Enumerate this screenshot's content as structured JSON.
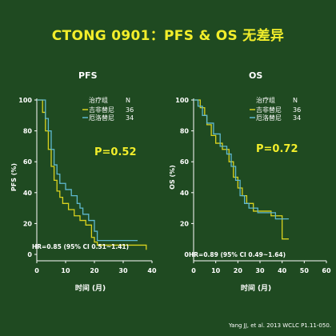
{
  "page": {
    "title": "CTONG 0901：PFS & OS 无差异",
    "citation": "Yang JJ, et al. 2013 WCLC P1.11-050.",
    "background": "#1f4a21"
  },
  "colors": {
    "title": "#f2ee2b",
    "axis": "#ffffff",
    "gefitinib": "#d9d21f",
    "erlotinib": "#5fb8cf"
  },
  "legend": {
    "header_label": "治疗组",
    "header_n": "N",
    "items": [
      {
        "label": "吉非替尼",
        "n": "36"
      },
      {
        "label": "厄洛替尼",
        "n": "34"
      }
    ]
  },
  "chart_data": [
    {
      "type": "line",
      "title": "PFS",
      "xlabel": "时间 (月)",
      "ylabel": "PFS (%)",
      "xlim": [
        0,
        40
      ],
      "ylim": [
        0,
        100
      ],
      "xticks": [
        "0",
        "10",
        "20",
        "30",
        "40"
      ],
      "yticks": [
        "0",
        "20",
        "40",
        "60",
        "80",
        "100"
      ],
      "pvalue": "P=0.52",
      "hr": "HR=0.85 (95% CI 0.51~1.41)",
      "series": [
        {
          "name": "吉非替尼",
          "x": [
            0,
            2,
            3,
            4,
            5,
            6,
            7,
            8,
            9,
            11,
            13,
            15,
            17,
            19,
            20,
            21,
            38
          ],
          "y": [
            100,
            92,
            80,
            68,
            57,
            48,
            41,
            37,
            33,
            29,
            25,
            22,
            19,
            11,
            8,
            6,
            3
          ]
        },
        {
          "name": "厄洛替尼",
          "x": [
            0,
            3,
            4,
            5,
            6,
            7,
            8,
            10,
            12,
            14,
            15,
            16,
            18,
            20,
            21,
            35
          ],
          "y": [
            100,
            88,
            80,
            68,
            58,
            52,
            46,
            42,
            38,
            33,
            30,
            26,
            22,
            15,
            9,
            9
          ]
        }
      ]
    },
    {
      "type": "line",
      "title": "OS",
      "xlabel": "时间 (月)",
      "ylabel": "OS (%)",
      "xlim": [
        0,
        60
      ],
      "ylim": [
        0,
        100
      ],
      "xticks": [
        "0",
        "10",
        "20",
        "30",
        "40",
        "50",
        "60"
      ],
      "yticks": [
        "0",
        "20",
        "40",
        "60",
        "80",
        "100"
      ],
      "pvalue": "P=0.72",
      "hr": "HR=0.89 (95% CI 0.49~1.64)",
      "series": [
        {
          "name": "吉非替尼",
          "x": [
            0,
            3,
            5,
            6,
            8,
            10,
            13,
            16,
            18,
            20,
            22,
            24,
            27,
            30,
            35,
            40,
            43
          ],
          "y": [
            100,
            95,
            90,
            84,
            77,
            72,
            68,
            60,
            50,
            43,
            38,
            33,
            28,
            28,
            25,
            10,
            10
          ]
        },
        {
          "name": "厄洛替尼",
          "x": [
            0,
            2,
            4,
            6,
            9,
            12,
            15,
            17,
            19,
            21,
            23,
            25,
            29,
            37,
            43
          ],
          "y": [
            100,
            96,
            90,
            85,
            78,
            70,
            65,
            57,
            48,
            38,
            33,
            30,
            27,
            23,
            23
          ]
        }
      ]
    }
  ]
}
